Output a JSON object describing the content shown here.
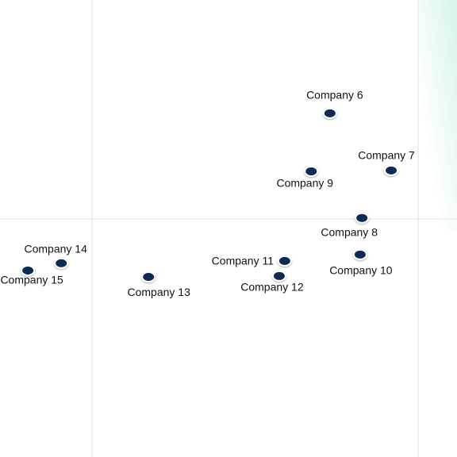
{
  "chart_data": {
    "type": "scatter",
    "point_labels": [
      "Company 6",
      "Company 7",
      "Company 9",
      "Company 8",
      "Company 10",
      "Company 11",
      "Company 12",
      "Company 13",
      "Company 14",
      "Company 15"
    ],
    "x": [
      72.2,
      85.6,
      68.1,
      79.2,
      78.8,
      62.3,
      61.1,
      32.5,
      13.4,
      6.1
    ],
    "values": [
      75.2,
      62.7,
      62.5,
      52.3,
      44.3,
      42.9,
      39.6,
      39.4,
      42.4,
      40.8
    ],
    "color": "#0f2a55",
    "xlim": [
      0,
      100
    ],
    "ylim": [
      0,
      100
    ]
  }
}
